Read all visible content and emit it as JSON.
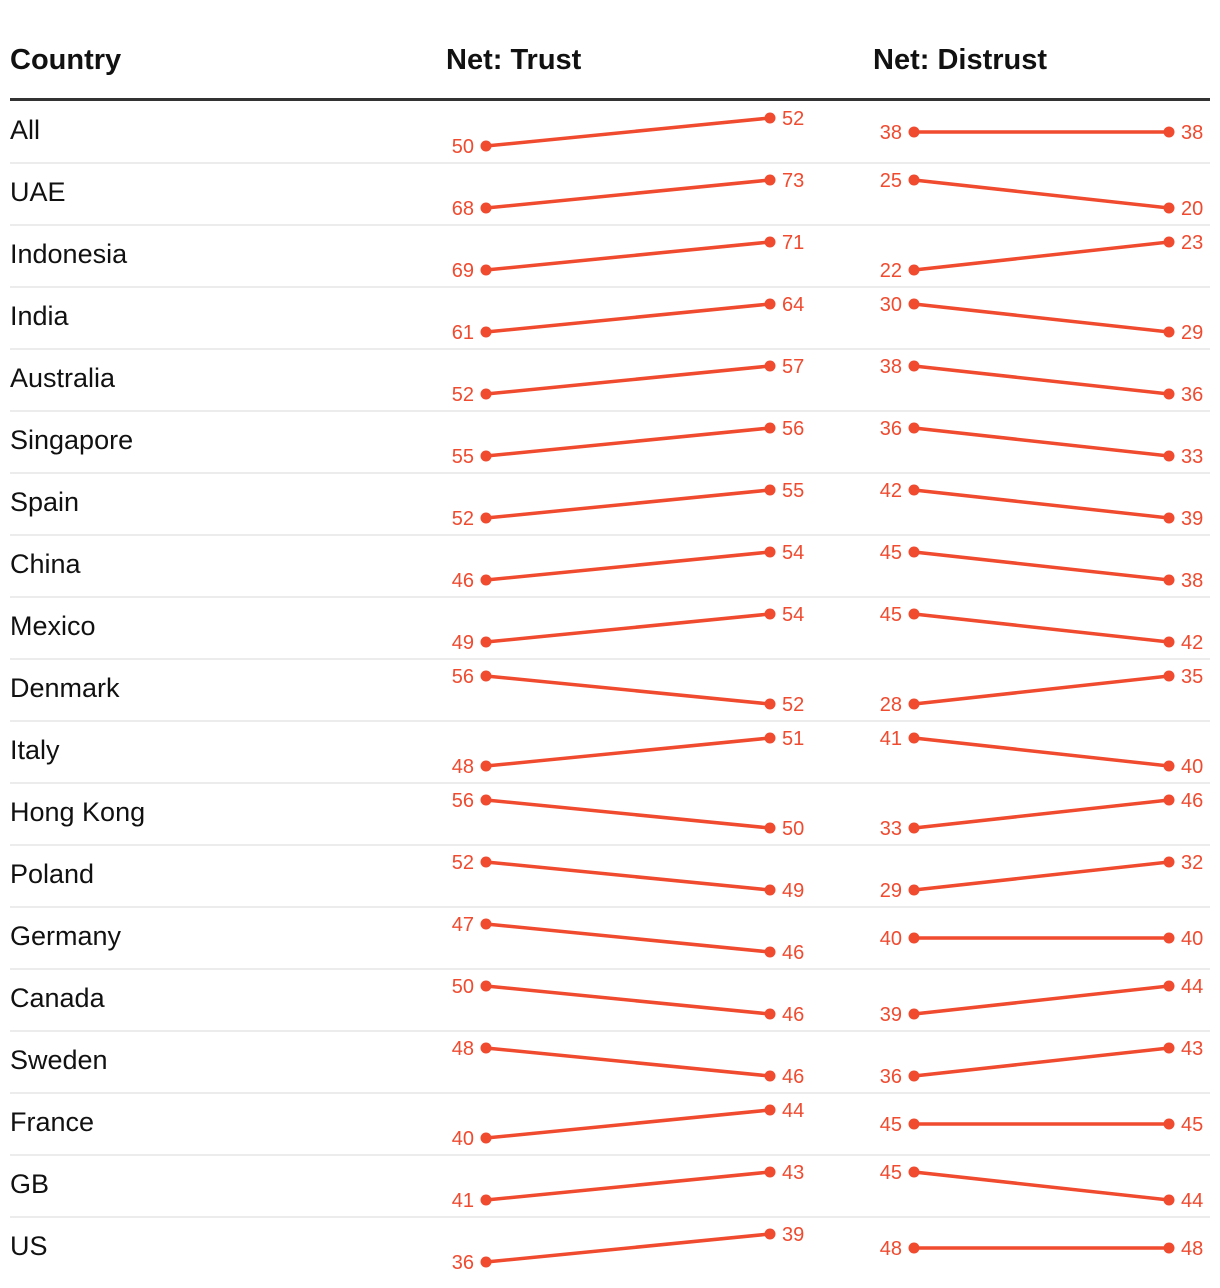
{
  "chart_data": {
    "type": "slope",
    "headers": {
      "country": "Country",
      "trust": "Net: Trust",
      "distrust": "Net: Distrust"
    },
    "accent_color": "#f04a2f",
    "rows": [
      {
        "country": "All",
        "trust": [
          50,
          52
        ],
        "distrust": [
          38,
          38
        ]
      },
      {
        "country": "UAE",
        "trust": [
          68,
          73
        ],
        "distrust": [
          25,
          20
        ]
      },
      {
        "country": "Indonesia",
        "trust": [
          69,
          71
        ],
        "distrust": [
          22,
          23
        ]
      },
      {
        "country": "India",
        "trust": [
          61,
          64
        ],
        "distrust": [
          30,
          29
        ]
      },
      {
        "country": "Australia",
        "trust": [
          52,
          57
        ],
        "distrust": [
          38,
          36
        ]
      },
      {
        "country": "Singapore",
        "trust": [
          55,
          56
        ],
        "distrust": [
          36,
          33
        ]
      },
      {
        "country": "Spain",
        "trust": [
          52,
          55
        ],
        "distrust": [
          42,
          39
        ]
      },
      {
        "country": "China",
        "trust": [
          46,
          54
        ],
        "distrust": [
          45,
          38
        ]
      },
      {
        "country": "Mexico",
        "trust": [
          49,
          54
        ],
        "distrust": [
          45,
          42
        ]
      },
      {
        "country": "Denmark",
        "trust": [
          56,
          52
        ],
        "distrust": [
          28,
          35
        ]
      },
      {
        "country": "Italy",
        "trust": [
          48,
          51
        ],
        "distrust": [
          41,
          40
        ]
      },
      {
        "country": "Hong Kong",
        "trust": [
          56,
          50
        ],
        "distrust": [
          33,
          46
        ]
      },
      {
        "country": "Poland",
        "trust": [
          52,
          49
        ],
        "distrust": [
          29,
          32
        ]
      },
      {
        "country": "Germany",
        "trust": [
          47,
          46
        ],
        "distrust": [
          40,
          40
        ]
      },
      {
        "country": "Canada",
        "trust": [
          50,
          46
        ],
        "distrust": [
          39,
          44
        ]
      },
      {
        "country": "Sweden",
        "trust": [
          48,
          46
        ],
        "distrust": [
          36,
          43
        ]
      },
      {
        "country": "France",
        "trust": [
          40,
          44
        ],
        "distrust": [
          45,
          45
        ]
      },
      {
        "country": "GB",
        "trust": [
          41,
          43
        ],
        "distrust": [
          45,
          44
        ]
      },
      {
        "country": "US",
        "trust": [
          36,
          39
        ],
        "distrust": [
          48,
          48
        ]
      }
    ]
  }
}
